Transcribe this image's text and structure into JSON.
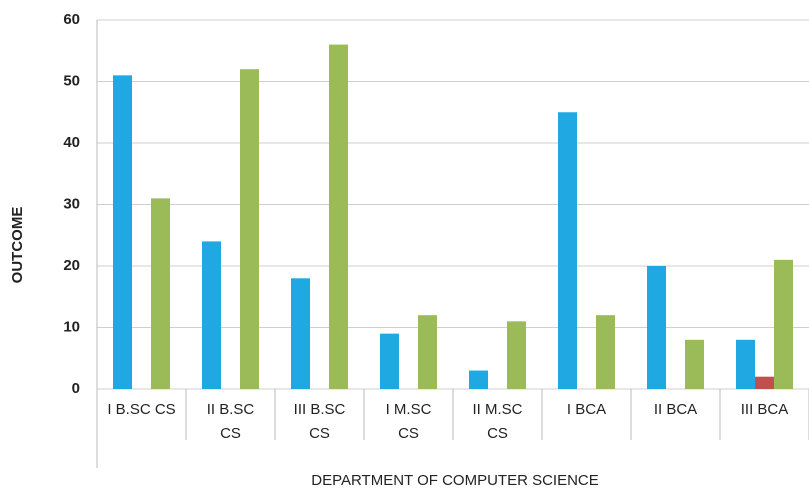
{
  "chart_data": {
    "type": "bar",
    "xlabel": "DEPARTMENT OF COMPUTER SCIENCE",
    "ylabel": "OUTCOME",
    "categories": [
      [
        "I B.SC CS"
      ],
      [
        "II B.SC",
        "CS"
      ],
      [
        "III B.SC",
        "CS"
      ],
      [
        "I M.SC",
        "CS"
      ],
      [
        "II M.SC",
        "CS"
      ],
      [
        "I BCA"
      ],
      [
        "II BCA"
      ],
      [
        "III BCA"
      ]
    ],
    "series": [
      {
        "color": "#1fa8e2",
        "values": [
          51,
          24,
          18,
          9,
          3,
          45,
          20,
          8
        ]
      },
      {
        "color": "#c0504d",
        "values": [
          0,
          0,
          0,
          0,
          0,
          0,
          0,
          2
        ]
      },
      {
        "color": "#9bbb59",
        "values": [
          31,
          52,
          56,
          12,
          11,
          12,
          8,
          21
        ]
      }
    ],
    "ylim": [
      0,
      60
    ],
    "yticks": [
      0,
      10,
      20,
      30,
      40,
      50,
      60
    ],
    "grid": true
  }
}
